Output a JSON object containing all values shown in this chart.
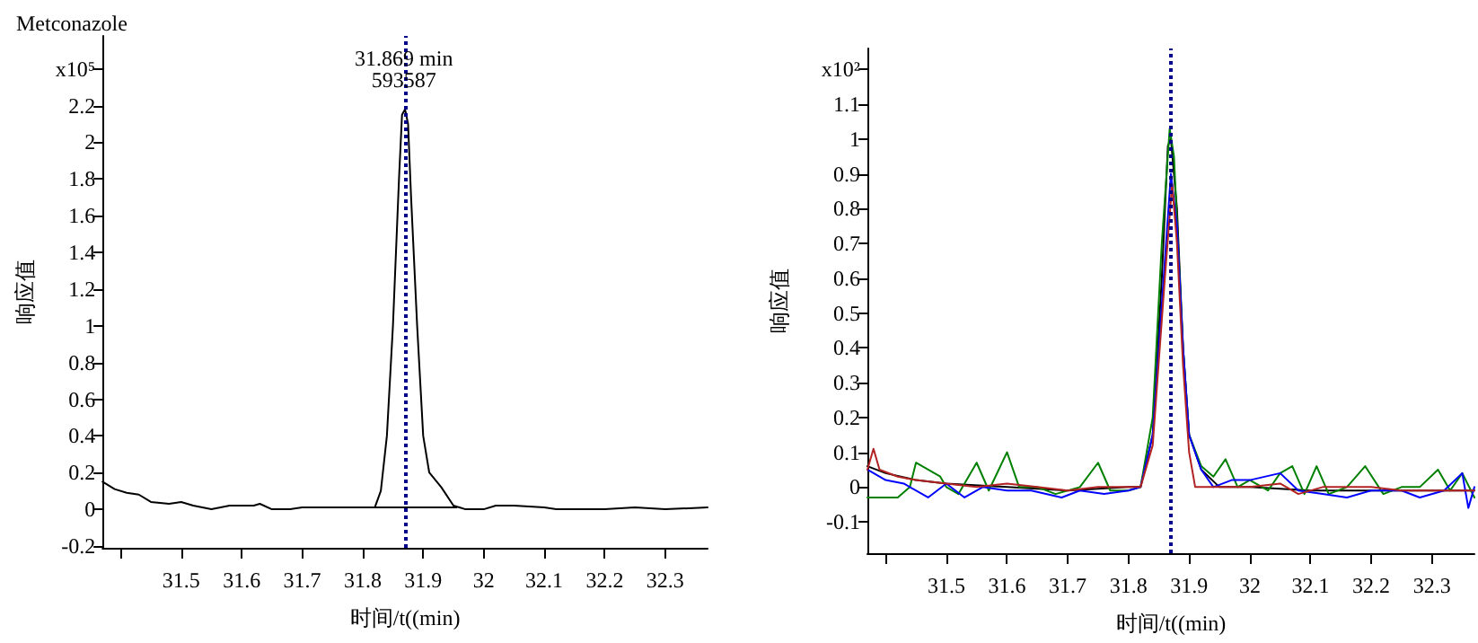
{
  "chart_data": [
    {
      "type": "line",
      "title": "Metconazole",
      "xlabel": "时间/t((min)",
      "ylabel": "响应值",
      "xlim": [
        31.37,
        32.37
      ],
      "xticks": [
        {
          "value": 31.4,
          "label": null
        },
        31.5,
        31.6,
        31.7,
        31.8,
        31.9,
        32,
        32.1,
        32.2,
        32.3
      ],
      "ylim": [
        -0.21,
        2.58
      ],
      "yticks": [
        -0.2,
        0,
        0.2,
        0.4,
        0.6,
        0.8,
        1,
        1.2,
        1.4,
        1.6,
        1.8,
        2,
        2.2,
        {
          "value": 2.4,
          "label": "x10⁵"
        }
      ],
      "grid": false,
      "marker": "none",
      "line_style": "solid",
      "ref_lines": [
        {
          "axis": "x",
          "value": 31.868,
          "color": "#00008b",
          "line_style": "dotted"
        }
      ],
      "annotations": [
        {
          "text": "31.869 min",
          "x": 31.868,
          "y": 2.46
        },
        {
          "text": "593587",
          "x": 31.868,
          "y": 2.34
        }
      ],
      "series": [
        {
          "color": "#000000",
          "x": [
            31.37,
            31.39,
            31.41,
            31.43,
            31.45,
            31.48,
            31.5,
            31.52,
            31.55,
            31.58,
            31.62,
            31.63,
            31.65,
            31.68,
            31.7,
            31.75,
            31.8,
            31.82,
            31.83,
            31.84,
            31.85,
            31.86,
            31.865,
            31.87,
            31.875,
            31.88,
            31.89,
            31.9,
            31.91,
            31.93,
            31.95,
            31.96,
            31.97,
            32.0,
            32.02,
            32.05,
            32.1,
            32.12,
            32.2,
            32.25,
            32.3,
            32.37
          ],
          "values": [
            0.15,
            0.11,
            0.09,
            0.08,
            0.04,
            0.03,
            0.04,
            0.02,
            0.0,
            0.02,
            0.02,
            0.03,
            0.0,
            0.0,
            0.01,
            0.01,
            0.01,
            0.01,
            0.1,
            0.4,
            1.0,
            1.8,
            2.15,
            2.18,
            2.1,
            1.7,
            1.0,
            0.4,
            0.2,
            0.12,
            0.02,
            0.01,
            0.0,
            0.0,
            0.02,
            0.02,
            0.01,
            0.0,
            0.0,
            0.01,
            0.0,
            0.01
          ]
        },
        {
          "color": "#000000",
          "x": [
            31.82,
            31.955
          ],
          "values": [
            0.01,
            0.01
          ]
        }
      ]
    },
    {
      "type": "line",
      "xlabel": "时间/t((min)",
      "ylabel": "响应值",
      "xlim": [
        31.37,
        32.37
      ],
      "xticks": [
        {
          "value": 31.4,
          "label": null
        },
        31.5,
        31.6,
        31.7,
        31.8,
        31.9,
        32,
        32.1,
        32.2,
        32.3
      ],
      "ylim": [
        -0.19,
        1.26
      ],
      "yticks": [
        -0.1,
        0,
        0.1,
        0.2,
        0.3,
        0.4,
        0.5,
        0.6,
        0.7,
        0.8,
        0.9,
        1,
        1.1,
        {
          "value": 1.2,
          "label": "x10²"
        }
      ],
      "grid": false,
      "marker": "none",
      "line_style": "solid",
      "ref_lines": [
        {
          "axis": "x",
          "value": 31.868,
          "color": "#00008b",
          "line_style": "dotted"
        }
      ],
      "series": [
        {
          "color": "#000000",
          "x": [
            31.37,
            31.4,
            31.45,
            31.5,
            31.6,
            31.7,
            31.8,
            31.82,
            31.84,
            31.855,
            31.865,
            31.87,
            31.88,
            31.89,
            31.9,
            31.92,
            31.95,
            32.0,
            32.1,
            32.2,
            32.3,
            32.37
          ],
          "values": [
            0.06,
            0.04,
            0.02,
            0.01,
            0.0,
            -0.01,
            0.0,
            0.0,
            0.15,
            0.6,
            0.98,
            1.0,
            0.8,
            0.4,
            0.15,
            0.05,
            0.0,
            0.0,
            -0.01,
            -0.01,
            -0.01,
            -0.01
          ]
        },
        {
          "color": "#008000",
          "x": [
            31.37,
            31.4,
            31.42,
            31.44,
            31.45,
            31.47,
            31.49,
            31.5,
            31.52,
            31.55,
            31.57,
            31.6,
            31.62,
            31.65,
            31.68,
            31.72,
            31.75,
            31.77,
            31.8,
            31.82,
            31.84,
            31.855,
            31.868,
            31.875,
            31.89,
            31.9,
            31.92,
            31.94,
            31.96,
            31.98,
            32.0,
            32.03,
            32.05,
            32.07,
            32.09,
            32.11,
            32.13,
            32.16,
            32.19,
            32.22,
            32.25,
            32.28,
            32.31,
            32.33,
            32.35,
            32.37
          ],
          "values": [
            -0.03,
            -0.03,
            -0.03,
            0.0,
            0.07,
            0.05,
            0.03,
            0.0,
            -0.02,
            0.07,
            -0.01,
            0.1,
            0.0,
            0.0,
            -0.02,
            0.0,
            0.07,
            -0.01,
            -0.01,
            0.0,
            0.2,
            0.7,
            1.03,
            0.95,
            0.4,
            0.15,
            0.06,
            0.03,
            0.08,
            0.0,
            0.02,
            -0.01,
            0.04,
            0.06,
            -0.02,
            0.06,
            -0.02,
            0.0,
            0.06,
            -0.02,
            0.0,
            0.0,
            0.05,
            -0.01,
            0.04,
            -0.03
          ]
        },
        {
          "color": "#0000ff",
          "x": [
            31.37,
            31.4,
            31.43,
            31.47,
            31.5,
            31.53,
            31.56,
            31.6,
            31.64,
            31.69,
            31.72,
            31.76,
            31.8,
            31.82,
            31.84,
            31.858,
            31.87,
            31.88,
            31.89,
            31.9,
            31.92,
            31.94,
            31.97,
            32.0,
            32.05,
            32.08,
            32.12,
            32.16,
            32.2,
            32.25,
            32.28,
            32.32,
            32.35,
            32.36,
            32.37
          ],
          "values": [
            0.05,
            0.02,
            0.01,
            -0.03,
            0.01,
            -0.03,
            0.0,
            -0.01,
            -0.01,
            -0.03,
            -0.01,
            -0.02,
            -0.01,
            0.0,
            0.15,
            0.6,
            0.9,
            0.75,
            0.4,
            0.15,
            0.05,
            0.0,
            0.02,
            0.02,
            0.04,
            -0.01,
            -0.02,
            -0.03,
            -0.01,
            -0.01,
            -0.03,
            -0.01,
            0.04,
            -0.06,
            0.0
          ]
        },
        {
          "color": "#b22222",
          "x": [
            31.37,
            31.38,
            31.39,
            31.42,
            31.45,
            31.5,
            31.55,
            31.6,
            31.65,
            31.7,
            31.75,
            31.8,
            31.82,
            31.84,
            31.86,
            31.872,
            31.88,
            31.89,
            31.9,
            31.91,
            31.93,
            31.96,
            32.0,
            32.05,
            32.08,
            32.12,
            32.2,
            32.25,
            32.3,
            32.37
          ],
          "values": [
            0.05,
            0.11,
            0.05,
            0.03,
            0.02,
            0.01,
            0.0,
            0.01,
            0.0,
            -0.01,
            0.0,
            0.0,
            0.0,
            0.12,
            0.6,
            0.87,
            0.7,
            0.35,
            0.1,
            0.0,
            0.0,
            0.0,
            0.0,
            0.01,
            -0.02,
            0.0,
            0.0,
            -0.01,
            -0.01,
            -0.01
          ]
        }
      ]
    }
  ]
}
